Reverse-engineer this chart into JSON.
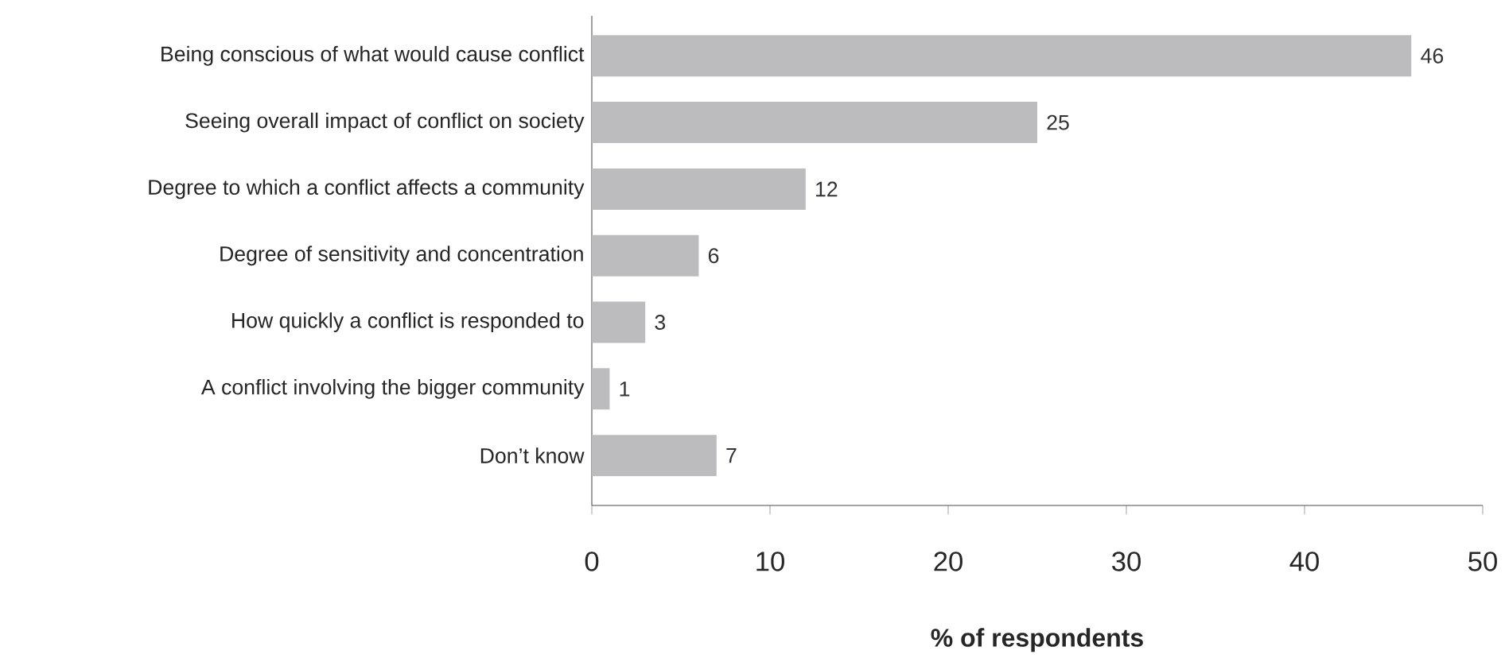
{
  "chart_data": {
    "type": "bar",
    "orientation": "horizontal",
    "xlabel": "% of respondents",
    "categories": [
      "Being conscious of what would cause conflict",
      "Seeing overall impact of conflict on society",
      "Degree to which a conflict affects a community",
      "Degree of sensitivity and concentration",
      "How quickly a conflict is responded to",
      "A conflict involving the bigger community",
      "Don’t know"
    ],
    "values": [
      46,
      25,
      12,
      6,
      3,
      1,
      7
    ],
    "color": "#bcbcbe",
    "data_labels": true,
    "xlim": [
      0,
      50
    ],
    "xticks": [
      0,
      10,
      20,
      30,
      40,
      50
    ]
  }
}
